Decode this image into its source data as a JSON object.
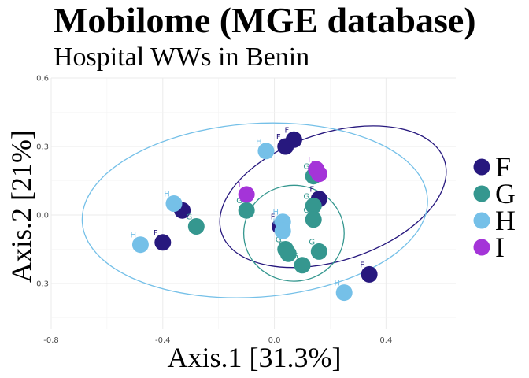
{
  "chart_data": {
    "type": "scatter",
    "title": "Mobilome (MGE database)",
    "subtitle": "Hospital WWs in Benin",
    "xlabel": "Axis.1   [31.3%]",
    "ylabel": "Axis.2   [21%]",
    "xlim": [
      -0.8,
      0.65
    ],
    "ylim": [
      -0.5,
      0.6
    ],
    "x_ticks": [
      -0.8,
      -0.4,
      0.0,
      0.4
    ],
    "x_tick_labels": [
      "-0.8",
      "-0.4",
      "0.0",
      "0.4"
    ],
    "y_ticks": [
      -0.3,
      0.0,
      0.3,
      0.6
    ],
    "y_tick_labels": [
      "-0.3",
      "0.0",
      "0.3",
      "0.6"
    ],
    "grid": true,
    "legend_position": "right",
    "legend": [
      {
        "name": "F",
        "color": "#27187e"
      },
      {
        "name": "G",
        "color": "#35978f"
      },
      {
        "name": "H",
        "color": "#75c0e8"
      },
      {
        "name": "I",
        "color": "#a434d8"
      }
    ],
    "series": [
      {
        "name": "F",
        "color": "#27187e",
        "points": [
          {
            "x": 0.07,
            "y": 0.33
          },
          {
            "x": 0.04,
            "y": 0.3
          },
          {
            "x": -0.33,
            "y": 0.02
          },
          {
            "x": -0.4,
            "y": -0.12
          },
          {
            "x": 0.02,
            "y": -0.05
          },
          {
            "x": 0.16,
            "y": 0.07
          },
          {
            "x": 0.34,
            "y": -0.26
          }
        ]
      },
      {
        "name": "G",
        "color": "#35978f",
        "points": [
          {
            "x": -0.28,
            "y": -0.05
          },
          {
            "x": -0.1,
            "y": 0.02
          },
          {
            "x": 0.14,
            "y": 0.17
          },
          {
            "x": 0.14,
            "y": 0.04
          },
          {
            "x": 0.14,
            "y": -0.02
          },
          {
            "x": 0.04,
            "y": -0.15
          },
          {
            "x": 0.05,
            "y": -0.17
          },
          {
            "x": 0.16,
            "y": -0.16
          },
          {
            "x": 0.1,
            "y": -0.22
          }
        ]
      },
      {
        "name": "H",
        "color": "#75c0e8",
        "points": [
          {
            "x": -0.03,
            "y": 0.28
          },
          {
            "x": -0.36,
            "y": 0.05
          },
          {
            "x": -0.48,
            "y": -0.13
          },
          {
            "x": 0.03,
            "y": -0.03
          },
          {
            "x": 0.03,
            "y": -0.07
          },
          {
            "x": 0.25,
            "y": -0.34
          }
        ]
      },
      {
        "name": "I",
        "color": "#a434d8",
        "points": [
          {
            "x": -0.1,
            "y": 0.09
          },
          {
            "x": 0.15,
            "y": 0.2
          },
          {
            "x": 0.16,
            "y": 0.18
          }
        ]
      }
    ],
    "ellipses": [
      {
        "group": "F",
        "color": "#27187e",
        "cx": 0.21,
        "cy": 0.08,
        "rx": 0.42,
        "ry": 0.28,
        "angle_deg": 18
      },
      {
        "group": "G",
        "color": "#35978f",
        "cx": 0.07,
        "cy": -0.08,
        "rx": 0.18,
        "ry": 0.21,
        "angle_deg": 0
      },
      {
        "group": "H",
        "color": "#75c0e8",
        "cx": -0.07,
        "cy": 0.02,
        "rx": 0.62,
        "ry": 0.38,
        "angle_deg": 4
      }
    ]
  }
}
